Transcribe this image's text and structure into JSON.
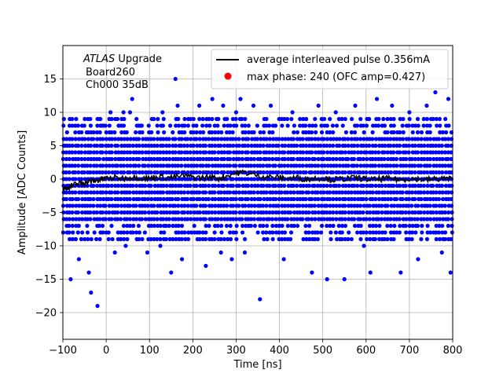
{
  "chart_data": {
    "type": "scatter",
    "xlabel": "Time [ns]",
    "ylabel": "Amplitude [ADC Counts]",
    "xlim": [
      -100,
      800
    ],
    "ylim": [
      -24,
      20
    ],
    "xticks": [
      -100,
      0,
      100,
      200,
      300,
      400,
      500,
      600,
      700,
      800
    ],
    "yticks": [
      -20,
      -15,
      -10,
      -5,
      0,
      5,
      10,
      15
    ],
    "grid": true,
    "legend_position": "top-right",
    "annotation": {
      "italic": "ATLAS",
      "line1_rest": " Upgrade",
      "line2": "Board260",
      "line3": "Ch000 35dB"
    },
    "legend": [
      {
        "label": "average interleaved pulse 0.356mA",
        "marker": "line",
        "color": "#000000"
      },
      {
        "label": "max phase: 240 (OFC amp=0.427)",
        "marker": "dot",
        "color": "#ff0000"
      }
    ],
    "series": [
      {
        "name": "average interleaved pulse 0.356mA",
        "kind": "line",
        "color": "#000000",
        "x": [
          -100,
          -90,
          -80,
          -70,
          -60,
          -50,
          -40,
          -30,
          -20,
          -10,
          0,
          20,
          40,
          60,
          80,
          100,
          120,
          140,
          160,
          180,
          200,
          220,
          240,
          260,
          280,
          300,
          320,
          340,
          360,
          380,
          400,
          420,
          440,
          460,
          480,
          500,
          520,
          540,
          560,
          580,
          600,
          620,
          640,
          660,
          680,
          700,
          720,
          740,
          760,
          780,
          800
        ],
        "y": [
          -1.5,
          -1.3,
          -1.0,
          -0.8,
          -0.6,
          -0.5,
          -0.4,
          -0.3,
          -0.2,
          0.0,
          0.1,
          0.2,
          0.1,
          0.3,
          0.2,
          0.1,
          0.4,
          0.2,
          0.3,
          0.5,
          0.3,
          0.2,
          0.3,
          0.1,
          0.5,
          0.9,
          1.0,
          0.7,
          0.4,
          0.3,
          0.2,
          0.1,
          0.2,
          0.0,
          0.1,
          0.2,
          -0.1,
          0.0,
          0.1,
          0.2,
          0.0,
          -0.1,
          0.1,
          0.0,
          -0.1,
          0.1,
          0.0,
          -0.1,
          0.0,
          0.1,
          0.0
        ]
      },
      {
        "name": "samples",
        "kind": "scatter",
        "color": "#0000ff",
        "dense_band": {
          "x_min": -100,
          "x_max": 800,
          "x_step": 7,
          "y_min": -9,
          "y_max": 9
        },
        "outliers": [
          [
            -95,
            5
          ],
          [
            -82,
            -15
          ],
          [
            -63,
            -12
          ],
          [
            -45,
            7
          ],
          [
            -40,
            -14
          ],
          [
            -35,
            -17
          ],
          [
            -20,
            -19
          ],
          [
            -15,
            9
          ],
          [
            -10,
            8
          ],
          [
            10,
            10
          ],
          [
            20,
            -11
          ],
          [
            30,
            8
          ],
          [
            40,
            10
          ],
          [
            45,
            -10
          ],
          [
            55,
            10
          ],
          [
            60,
            12
          ],
          [
            80,
            8
          ],
          [
            95,
            -11
          ],
          [
            110,
            9
          ],
          [
            125,
            -10
          ],
          [
            130,
            10
          ],
          [
            150,
            -14
          ],
          [
            160,
            15
          ],
          [
            165,
            11
          ],
          [
            175,
            -12
          ],
          [
            195,
            9
          ],
          [
            215,
            11
          ],
          [
            230,
            -13
          ],
          [
            245,
            12
          ],
          [
            255,
            9
          ],
          [
            265,
            -11
          ],
          [
            270,
            11
          ],
          [
            290,
            -12
          ],
          [
            300,
            10
          ],
          [
            310,
            12
          ],
          [
            320,
            -11
          ],
          [
            340,
            11
          ],
          [
            355,
            -18
          ],
          [
            365,
            9
          ],
          [
            380,
            11
          ],
          [
            410,
            -12
          ],
          [
            430,
            10
          ],
          [
            455,
            9
          ],
          [
            475,
            -14
          ],
          [
            490,
            11
          ],
          [
            510,
            -15
          ],
          [
            530,
            10
          ],
          [
            550,
            -15
          ],
          [
            575,
            11
          ],
          [
            595,
            -10
          ],
          [
            610,
            -14
          ],
          [
            625,
            12
          ],
          [
            640,
            9
          ],
          [
            660,
            11
          ],
          [
            680,
            -14
          ],
          [
            700,
            10
          ],
          [
            720,
            -12
          ],
          [
            740,
            11
          ],
          [
            760,
            13
          ],
          [
            775,
            -11
          ],
          [
            790,
            12
          ],
          [
            795,
            -14
          ]
        ]
      }
    ]
  }
}
